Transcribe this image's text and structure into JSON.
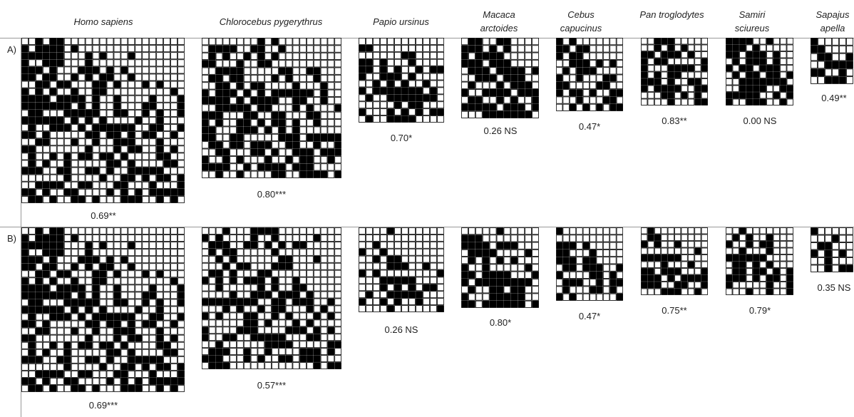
{
  "species": [
    {
      "label": "Homo sapiens"
    },
    {
      "label": "Chlorocebus pygerythrus"
    },
    {
      "label": "Papio ursinus"
    },
    {
      "label": "Macaca arctoides"
    },
    {
      "label": "Cebus capucinus"
    },
    {
      "label": "Pan troglodytes"
    },
    {
      "label": "Samiri sciureus"
    },
    {
      "label": "Sapajus apella"
    }
  ],
  "rows": [
    {
      "label": "A)",
      "scores": [
        "0.69**",
        "0.80***",
        "0.70*",
        "0.26 NS",
        "0.47*",
        "0.83**",
        "0.00 NS",
        "0.49**"
      ]
    },
    {
      "label": "B)",
      "scores": [
        "0.69***",
        "0.57***",
        "0.26 NS",
        "0.80*",
        "0.47*",
        "0.75**",
        "0.79*",
        "0.35 NS"
      ]
    }
  ],
  "colors": {
    "filled": "#000000",
    "empty": "#ffffff",
    "grid": "#000000",
    "rule": "#999999"
  }
}
